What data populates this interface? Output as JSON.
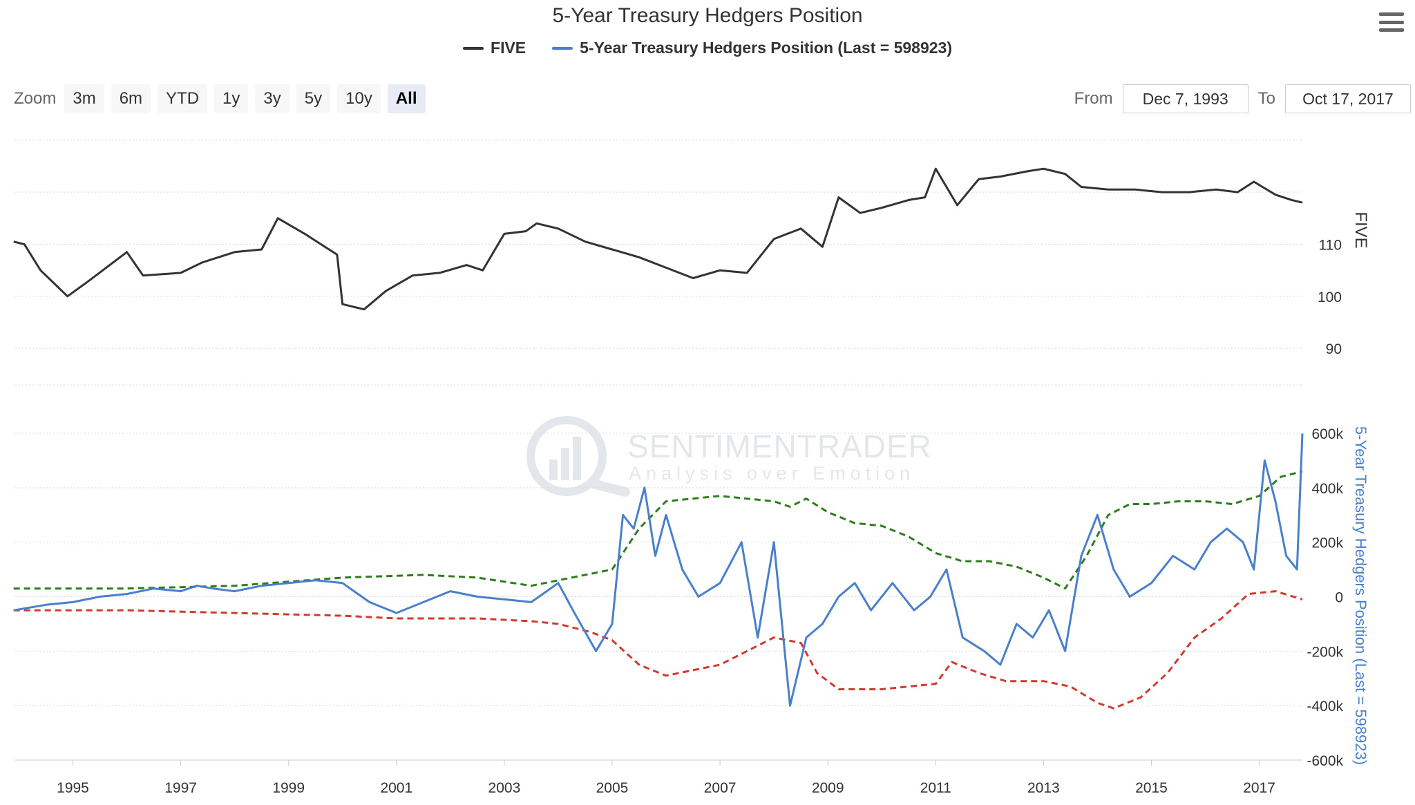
{
  "title": "5-Year Treasury Hedgers Position",
  "legend": [
    {
      "label": "FIVE",
      "color": "#333333"
    },
    {
      "label": "5-Year Treasury Hedgers Position (Last = 598923)",
      "color": "#4a7fcb"
    }
  ],
  "zoom": {
    "label": "Zoom",
    "buttons": [
      "3m",
      "6m",
      "YTD",
      "1y",
      "3y",
      "5y",
      "10y",
      "All"
    ],
    "active": "All"
  },
  "range": {
    "from_label": "From",
    "from_value": "Dec 7, 1993",
    "to_label": "To",
    "to_value": "Oct 17, 2017"
  },
  "watermark": {
    "brand": "SENTIMENTRADER",
    "tagline": "Analysis over Emotion"
  },
  "colors": {
    "price": "#333333",
    "hedgers": "#4a7fcb",
    "upper_band": "#2e7d1c",
    "lower_band": "#d03a2f",
    "grid": "#d8d8d8"
  },
  "chart_data": [
    {
      "type": "line",
      "series": [
        {
          "name": "FIVE",
          "x": [
            1993.9,
            1994.1,
            1994.4,
            1994.9,
            1995.3,
            1996.0,
            1996.3,
            1997.0,
            1997.4,
            1998.0,
            1998.5,
            1998.8,
            1999.3,
            1999.6,
            1999.9,
            2000.0,
            2000.4,
            2000.8,
            2001.3,
            2001.8,
            2002.3,
            2002.6,
            2003.0,
            2003.4,
            2003.6,
            2004.0,
            2004.5,
            2005.0,
            2005.5,
            2006.0,
            2006.5,
            2007.0,
            2007.5,
            2008.0,
            2008.5,
            2008.9,
            2009.2,
            2009.6,
            2010.0,
            2010.5,
            2010.8,
            2011.0,
            2011.4,
            2011.8,
            2012.2,
            2012.7,
            2013.0,
            2013.4,
            2013.7,
            2014.2,
            2014.7,
            2015.2,
            2015.7,
            2016.2,
            2016.6,
            2016.9,
            2017.3,
            2017.6,
            2017.8
          ],
          "values": [
            110.5,
            110.0,
            105.0,
            100.0,
            103.0,
            108.5,
            104.0,
            104.5,
            106.5,
            108.5,
            109.0,
            115.0,
            112.0,
            110.0,
            108.0,
            98.5,
            97.5,
            101.0,
            104.0,
            104.5,
            106.0,
            105.0,
            112.0,
            112.5,
            114.0,
            113.0,
            110.5,
            109.0,
            107.5,
            105.5,
            103.5,
            105.0,
            104.5,
            111.0,
            113.0,
            109.5,
            119.0,
            116.0,
            117.0,
            118.5,
            119.0,
            124.5,
            117.5,
            122.5,
            123.0,
            124.0,
            124.5,
            123.5,
            121.0,
            120.5,
            120.5,
            120.0,
            120.0,
            120.5,
            120.0,
            122.0,
            119.5,
            118.5,
            118.0
          ]
        }
      ],
      "yaxis": {
        "label": "FIVE",
        "ticks": [
          90,
          100,
          110
        ],
        "ylim": [
          83,
          135
        ]
      },
      "xaxis": {
        "ticks": [
          "1995",
          "1997",
          "1999",
          "2001",
          "2003",
          "2005",
          "2007",
          "2009",
          "2011",
          "2013",
          "2015",
          "2017"
        ],
        "xlim": [
          1993.93,
          2017.8
        ]
      }
    },
    {
      "type": "line",
      "series": [
        {
          "name": "5-Year Treasury Hedgers Position (Last = 598923)",
          "x": [
            1993.9,
            1994.5,
            1995.0,
            1995.5,
            1996.0,
            1996.5,
            1997.0,
            1997.3,
            1997.6,
            1998.0,
            1998.5,
            1999.0,
            1999.5,
            2000.0,
            2000.5,
            2001.0,
            2001.5,
            2002.0,
            2002.5,
            2003.0,
            2003.5,
            2004.0,
            2004.3,
            2004.7,
            2005.0,
            2005.2,
            2005.4,
            2005.6,
            2005.8,
            2006.0,
            2006.3,
            2006.6,
            2007.0,
            2007.4,
            2007.7,
            2008.0,
            2008.3,
            2008.6,
            2008.9,
            2009.2,
            2009.5,
            2009.8,
            2010.2,
            2010.6,
            2010.9,
            2011.2,
            2011.5,
            2011.9,
            2012.2,
            2012.5,
            2012.8,
            2013.1,
            2013.4,
            2013.7,
            2014.0,
            2014.3,
            2014.6,
            2015.0,
            2015.4,
            2015.8,
            2016.1,
            2016.4,
            2016.7,
            2016.9,
            2017.1,
            2017.3,
            2017.5,
            2017.7,
            2017.8
          ],
          "values": [
            -50000,
            -30000,
            -20000,
            0,
            10000,
            30000,
            20000,
            40000,
            30000,
            20000,
            40000,
            50000,
            60000,
            50000,
            -20000,
            -60000,
            -20000,
            20000,
            0,
            -10000,
            -20000,
            50000,
            -60000,
            -200000,
            -100000,
            300000,
            250000,
            400000,
            150000,
            300000,
            100000,
            0,
            50000,
            200000,
            -150000,
            200000,
            -400000,
            -150000,
            -100000,
            0,
            50000,
            -50000,
            50000,
            -50000,
            0,
            100000,
            -150000,
            -200000,
            -250000,
            -100000,
            -150000,
            -50000,
            -200000,
            150000,
            300000,
            100000,
            0,
            50000,
            150000,
            100000,
            200000,
            250000,
            200000,
            100000,
            500000,
            350000,
            150000,
            100000,
            598923
          ]
        },
        {
          "name": "",
          "x": [
            1993.9,
            1996.0,
            1998.0,
            2000.0,
            2001.5,
            2002.5,
            2003.5,
            2004.5,
            2005.0,
            2005.5,
            2006.0,
            2007.0,
            2008.0,
            2008.3,
            2008.6,
            2009.0,
            2009.5,
            2010.0,
            2010.5,
            2011.0,
            2011.5,
            2012.0,
            2012.5,
            2013.0,
            2013.4,
            2013.8,
            2014.2,
            2014.6,
            2015.0,
            2015.5,
            2016.0,
            2016.5,
            2017.0,
            2017.4,
            2017.8
          ],
          "values": [
            30000,
            30000,
            40000,
            70000,
            80000,
            70000,
            40000,
            80000,
            100000,
            250000,
            350000,
            370000,
            350000,
            330000,
            360000,
            310000,
            270000,
            260000,
            220000,
            160000,
            130000,
            130000,
            110000,
            70000,
            30000,
            150000,
            300000,
            340000,
            340000,
            350000,
            350000,
            340000,
            370000,
            440000,
            460000
          ]
        },
        {
          "name": "",
          "x": [
            1993.9,
            1996.0,
            1998.0,
            2000.0,
            2001.0,
            2002.5,
            2003.5,
            2004.0,
            2004.6,
            2005.0,
            2005.5,
            2006.0,
            2007.0,
            2007.5,
            2008.0,
            2008.5,
            2008.8,
            2009.2,
            2010.0,
            2011.0,
            2011.3,
            2011.8,
            2012.3,
            2013.0,
            2013.5,
            2014.0,
            2014.3,
            2014.8,
            2015.3,
            2015.8,
            2016.3,
            2016.8,
            2017.3,
            2017.8
          ],
          "values": [
            -50000,
            -50000,
            -60000,
            -70000,
            -80000,
            -80000,
            -90000,
            -100000,
            -130000,
            -160000,
            -250000,
            -290000,
            -250000,
            -200000,
            -150000,
            -170000,
            -280000,
            -340000,
            -340000,
            -320000,
            -240000,
            -280000,
            -310000,
            -310000,
            -330000,
            -390000,
            -410000,
            -370000,
            -280000,
            -150000,
            -80000,
            10000,
            20000,
            -10000
          ]
        }
      ],
      "yaxis": {
        "label": "5-Year Treasury Hedgers Position (Last = 598923)",
        "ticks": [
          "600k",
          "400k",
          "200k",
          "0",
          "-200k",
          "-400k",
          "-600k"
        ],
        "ylim": [
          -600000,
          600000
        ]
      },
      "xaxis": {
        "ticks": [
          "1995",
          "1997",
          "1999",
          "2001",
          "2003",
          "2005",
          "2007",
          "2009",
          "2011",
          "2013",
          "2015",
          "2017"
        ],
        "xlim": [
          1993.93,
          2017.8
        ]
      }
    }
  ]
}
